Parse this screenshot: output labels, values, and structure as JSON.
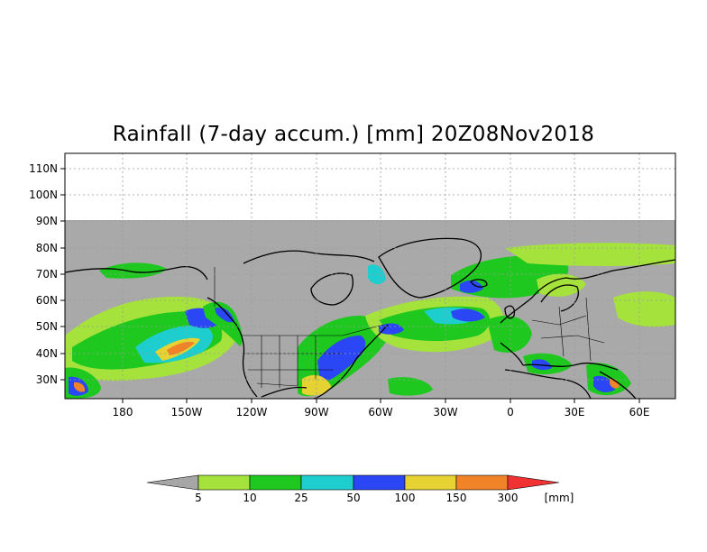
{
  "title": "Rainfall (7-day accum.) [mm] 20Z08Nov2018",
  "map": {
    "lat_labels": [
      "110N",
      "100N",
      "90N",
      "80N",
      "70N",
      "60N",
      "50N",
      "40N",
      "30N"
    ],
    "lon_labels": [
      "180",
      "150W",
      "120W",
      "90W",
      "60W",
      "30W",
      "0",
      "30E",
      "60E"
    ],
    "land_color": "#a9a9a9",
    "domain_lat_range": [
      22,
      90
    ],
    "axis_lat_range": [
      22,
      116
    ],
    "axis_lon_range": [
      -200,
      75
    ]
  },
  "legend": {
    "thresholds": [
      "5",
      "10",
      "25",
      "50",
      "100",
      "150",
      "300"
    ],
    "units": "[mm]",
    "colors": [
      "#a6a6a6",
      "#a5e23c",
      "#1ec81e",
      "#1ecdcd",
      "#2a46f5",
      "#e6d232",
      "#f08228",
      "#f03232"
    ]
  }
}
